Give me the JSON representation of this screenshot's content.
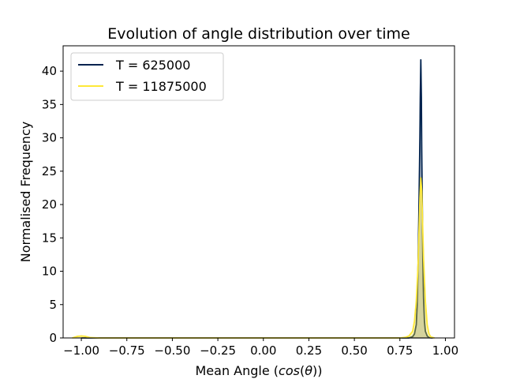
{
  "chart_data": {
    "type": "line",
    "title": "Evolution of angle distribution over time",
    "xlabel_prefix": "Mean Angle (",
    "xlabel_math": "cos",
    "xlabel_paren_open": "(",
    "xlabel_theta": "θ",
    "xlabel_suffix": "))",
    "ylabel": "Normalised Frequency",
    "xlim": [
      -1.1,
      1.05
    ],
    "ylim": [
      0,
      43.8
    ],
    "xticks": [
      -1.0,
      -0.75,
      -0.5,
      -0.25,
      0.0,
      0.25,
      0.5,
      0.75,
      1.0
    ],
    "xtick_labels": [
      "−1.00",
      "−0.75",
      "−0.50",
      "−0.25",
      "0.00",
      "0.25",
      "0.50",
      "0.75",
      "1.00"
    ],
    "yticks": [
      0,
      5,
      10,
      15,
      20,
      25,
      30,
      35,
      40
    ],
    "ytick_labels": [
      "0",
      "5",
      "10",
      "15",
      "20",
      "25",
      "30",
      "35",
      "40"
    ],
    "legend_position": "top-left",
    "series": [
      {
        "name": "T = 625000",
        "color": "#00224e",
        "x": [
          -1.0,
          0.8,
          0.82,
          0.83,
          0.84,
          0.845,
          0.85,
          0.855,
          0.86,
          0.862,
          0.865,
          0.868,
          0.87,
          0.873,
          0.876,
          0.88,
          0.885,
          0.89,
          0.9,
          0.91,
          0.93
        ],
        "y": [
          0,
          0,
          0.2,
          0.6,
          2.0,
          5.0,
          11.0,
          20.0,
          30.0,
          36.0,
          41.7,
          36.0,
          28.0,
          20.0,
          12.0,
          6.0,
          2.5,
          1.0,
          0.3,
          0.05,
          0
        ]
      },
      {
        "name": "T = 11875000",
        "color": "#fee838",
        "x": [
          -1.05,
          -1.02,
          -1.0,
          -0.98,
          -0.95,
          -0.9,
          0.75,
          0.78,
          0.8,
          0.82,
          0.83,
          0.84,
          0.85,
          0.855,
          0.86,
          0.865,
          0.87,
          0.875,
          0.88,
          0.89,
          0.9,
          0.91,
          0.92,
          0.94
        ],
        "y": [
          0,
          0.25,
          0.3,
          0.25,
          0.05,
          0,
          0,
          0.1,
          0.3,
          1.0,
          2.5,
          5.5,
          11.0,
          16.0,
          21.0,
          24.0,
          22.0,
          17.0,
          12.0,
          5.5,
          2.0,
          0.6,
          0.15,
          0
        ]
      }
    ],
    "shaded_outline_color": "#808080"
  }
}
